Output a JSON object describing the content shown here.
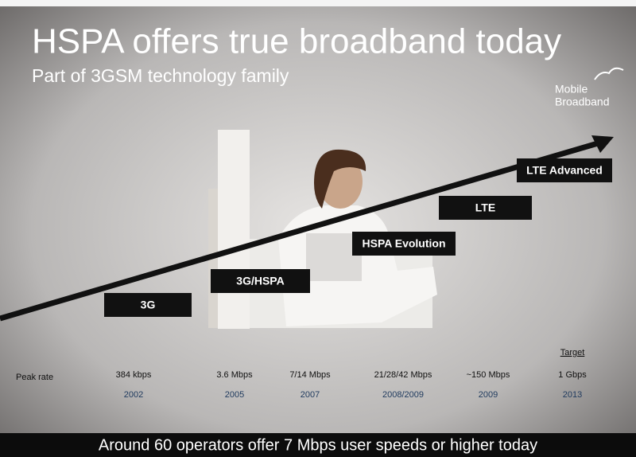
{
  "header": {
    "title": "HSPA offers true broadband today",
    "subtitle": "Part of 3GSM technology family"
  },
  "logo": {
    "lines": [
      "Mobile",
      "Broadband"
    ]
  },
  "stages": [
    "3G",
    "3G/HSPA",
    "HSPA Evolution",
    "LTE",
    "LTE Advanced"
  ],
  "table": {
    "row_label": "Peak rate",
    "target_label": "Target",
    "rates": [
      "384 kbps",
      "3.6 Mbps",
      "7/14 Mbps",
      "21/28/42 Mbps",
      "~150 Mbps",
      "1 Gbps"
    ],
    "years": [
      "2002",
      "2005",
      "2007",
      "2008/2009",
      "2009",
      "2013"
    ]
  },
  "footer": "Around 60 operators offer 7 Mbps user speeds or higher today"
}
